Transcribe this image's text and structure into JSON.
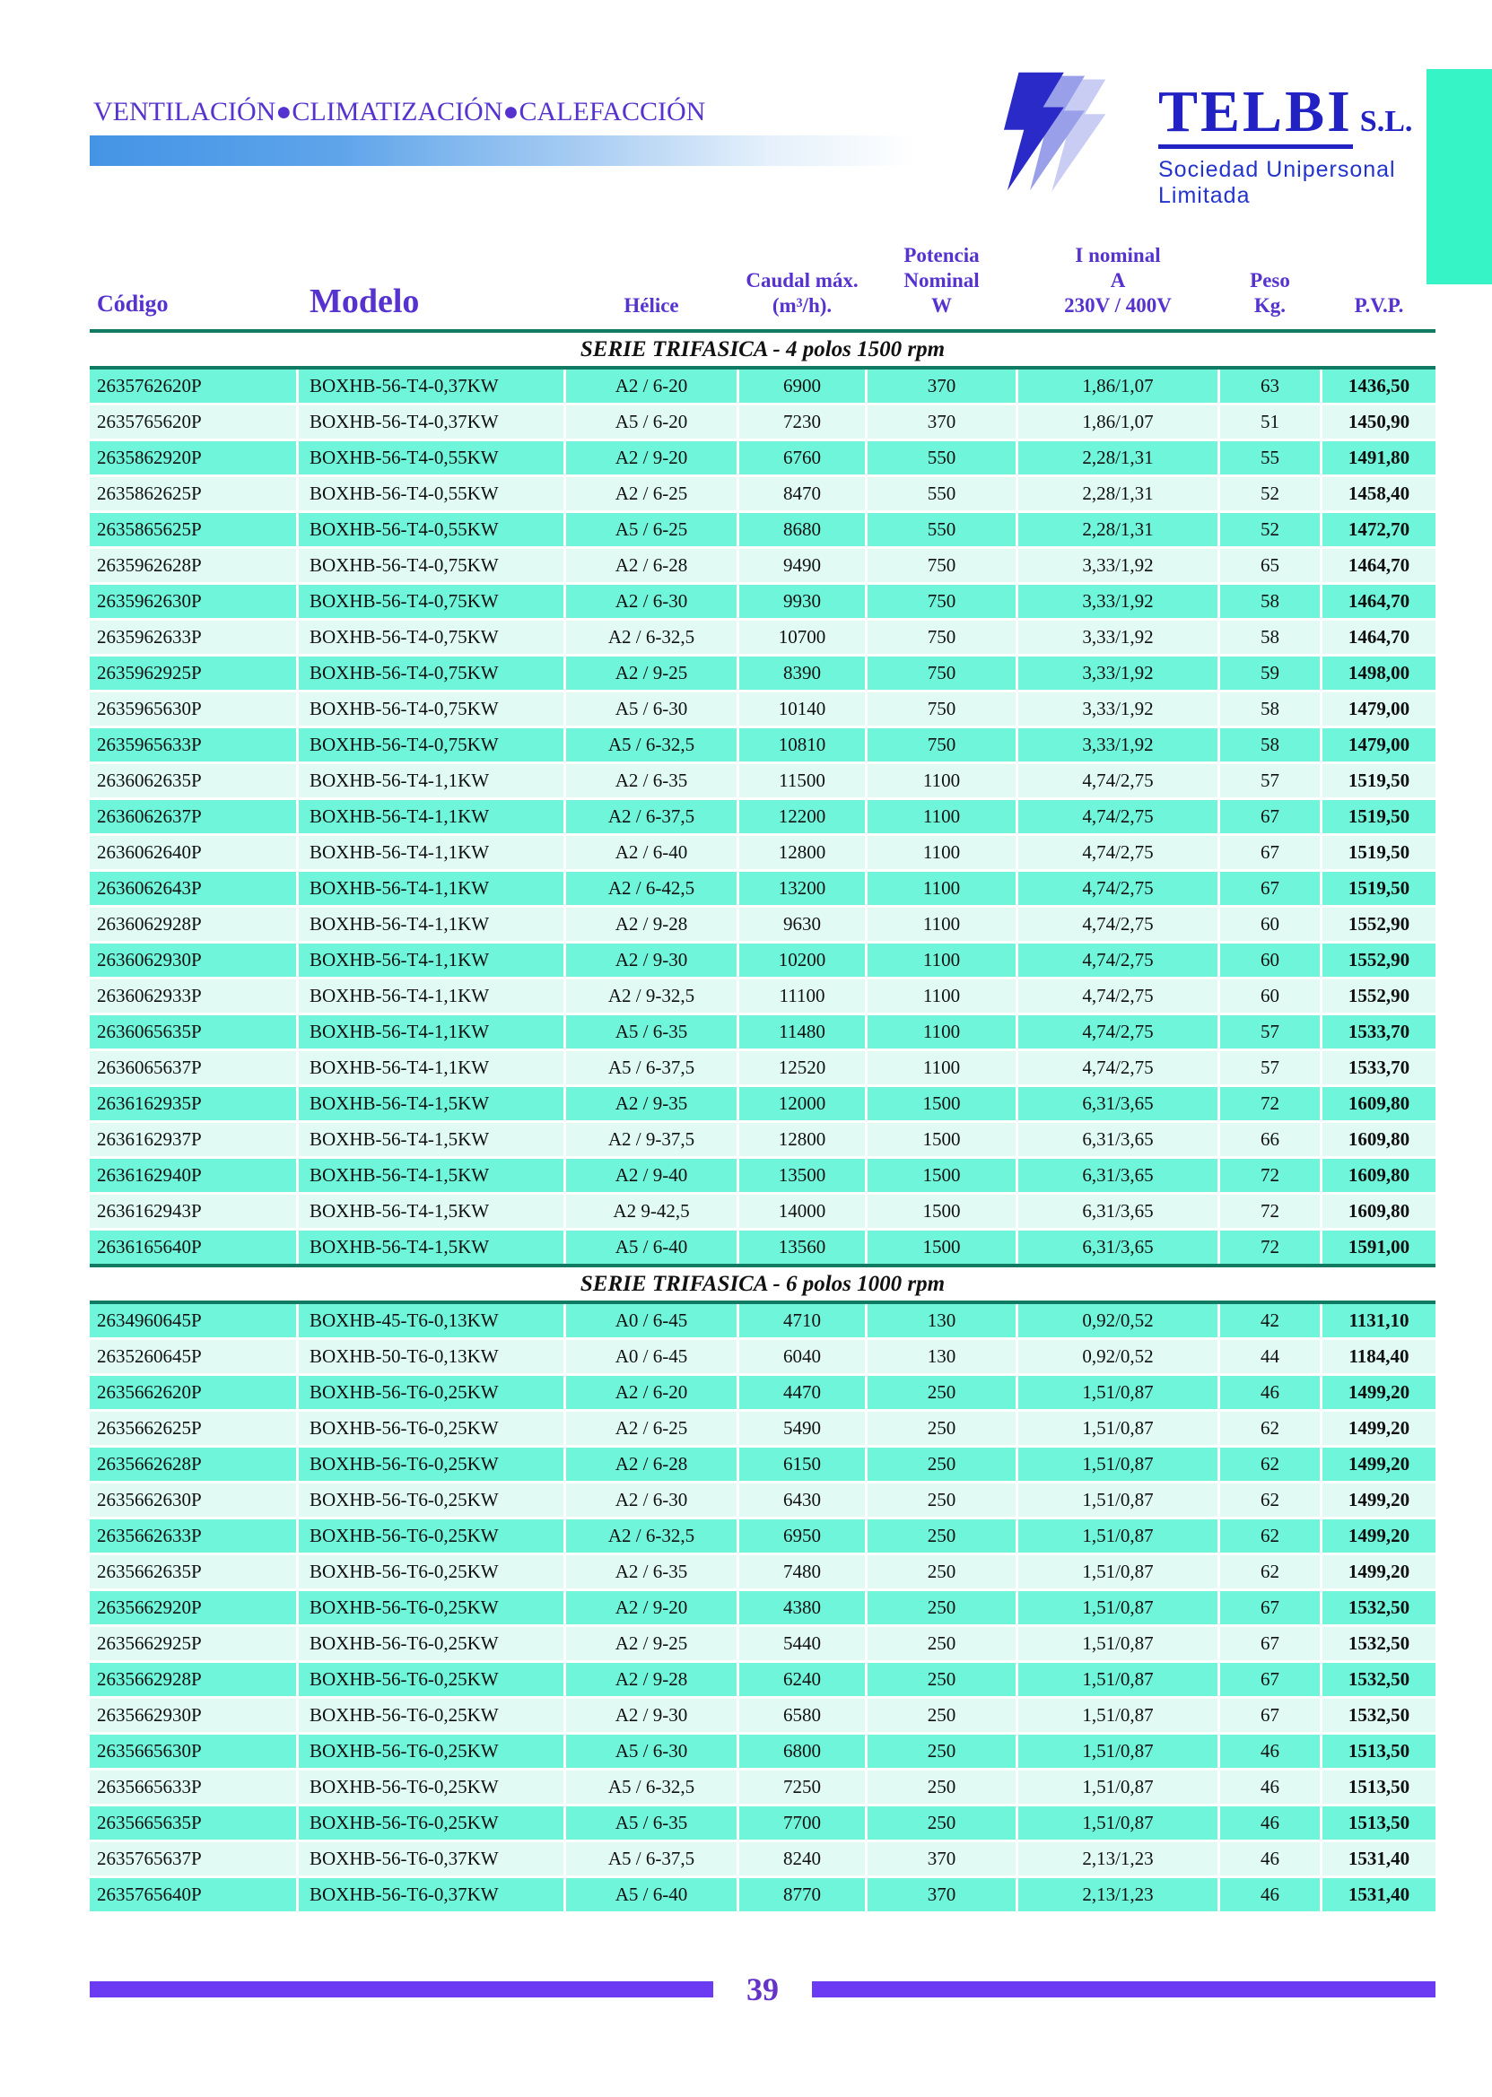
{
  "header": {
    "tagline": "VENTILACIÓN●CLIMATIZACIÓN●CALEFACCIÓN",
    "logo": {
      "name": "TELBI",
      "suffix": "S.L.",
      "subtitle": "Sociedad Unipersonal Limitada"
    }
  },
  "table": {
    "headers": [
      {
        "key": "codigo",
        "lines": [
          "Código"
        ]
      },
      {
        "key": "modelo",
        "lines": [
          "Modelo"
        ]
      },
      {
        "key": "helice",
        "lines": [
          "Hélice"
        ]
      },
      {
        "key": "caudal",
        "lines": [
          "Caudal máx.",
          "(m³/h)."
        ]
      },
      {
        "key": "potencia",
        "lines": [
          "Potencia",
          "Nominal",
          "W"
        ]
      },
      {
        "key": "inominal",
        "lines": [
          "I nominal",
          "A",
          "230V / 400V"
        ]
      },
      {
        "key": "peso",
        "lines": [
          "Peso",
          "Kg."
        ]
      },
      {
        "key": "pvp",
        "lines": [
          "P.V.P."
        ]
      }
    ],
    "sections": [
      {
        "title": "SERIE TRIFASICA - 4 polos 1500 rpm",
        "rows": [
          [
            "2635762620P",
            "BOXHB-56-T4-0,37KW",
            "A2 / 6-20",
            "6900",
            "370",
            "1,86/1,07",
            "63",
            "1436,50"
          ],
          [
            "2635765620P",
            "BOXHB-56-T4-0,37KW",
            "A5 / 6-20",
            "7230",
            "370",
            "1,86/1,07",
            "51",
            "1450,90"
          ],
          [
            "2635862920P",
            "BOXHB-56-T4-0,55KW",
            "A2 / 9-20",
            "6760",
            "550",
            "2,28/1,31",
            "55",
            "1491,80"
          ],
          [
            "2635862625P",
            "BOXHB-56-T4-0,55KW",
            "A2 / 6-25",
            "8470",
            "550",
            "2,28/1,31",
            "52",
            "1458,40"
          ],
          [
            "2635865625P",
            "BOXHB-56-T4-0,55KW",
            "A5 / 6-25",
            "8680",
            "550",
            "2,28/1,31",
            "52",
            "1472,70"
          ],
          [
            "2635962628P",
            "BOXHB-56-T4-0,75KW",
            "A2 / 6-28",
            "9490",
            "750",
            "3,33/1,92",
            "65",
            "1464,70"
          ],
          [
            "2635962630P",
            "BOXHB-56-T4-0,75KW",
            "A2 / 6-30",
            "9930",
            "750",
            "3,33/1,92",
            "58",
            "1464,70"
          ],
          [
            "2635962633P",
            "BOXHB-56-T4-0,75KW",
            "A2 / 6-32,5",
            "10700",
            "750",
            "3,33/1,92",
            "58",
            "1464,70"
          ],
          [
            "2635962925P",
            "BOXHB-56-T4-0,75KW",
            "A2 / 9-25",
            "8390",
            "750",
            "3,33/1,92",
            "59",
            "1498,00"
          ],
          [
            "2635965630P",
            "BOXHB-56-T4-0,75KW",
            "A5 / 6-30",
            "10140",
            "750",
            "3,33/1,92",
            "58",
            "1479,00"
          ],
          [
            "2635965633P",
            "BOXHB-56-T4-0,75KW",
            "A5 / 6-32,5",
            "10810",
            "750",
            "3,33/1,92",
            "58",
            "1479,00"
          ],
          [
            "2636062635P",
            "BOXHB-56-T4-1,1KW",
            "A2 / 6-35",
            "11500",
            "1100",
            "4,74/2,75",
            "57",
            "1519,50"
          ],
          [
            "2636062637P",
            "BOXHB-56-T4-1,1KW",
            "A2 / 6-37,5",
            "12200",
            "1100",
            "4,74/2,75",
            "67",
            "1519,50"
          ],
          [
            "2636062640P",
            "BOXHB-56-T4-1,1KW",
            "A2 / 6-40",
            "12800",
            "1100",
            "4,74/2,75",
            "67",
            "1519,50"
          ],
          [
            "2636062643P",
            "BOXHB-56-T4-1,1KW",
            "A2 / 6-42,5",
            "13200",
            "1100",
            "4,74/2,75",
            "67",
            "1519,50"
          ],
          [
            "2636062928P",
            "BOXHB-56-T4-1,1KW",
            "A2 / 9-28",
            "9630",
            "1100",
            "4,74/2,75",
            "60",
            "1552,90"
          ],
          [
            "2636062930P",
            "BOXHB-56-T4-1,1KW",
            "A2 / 9-30",
            "10200",
            "1100",
            "4,74/2,75",
            "60",
            "1552,90"
          ],
          [
            "2636062933P",
            "BOXHB-56-T4-1,1KW",
            "A2 / 9-32,5",
            "11100",
            "1100",
            "4,74/2,75",
            "60",
            "1552,90"
          ],
          [
            "2636065635P",
            "BOXHB-56-T4-1,1KW",
            "A5 / 6-35",
            "11480",
            "1100",
            "4,74/2,75",
            "57",
            "1533,70"
          ],
          [
            "2636065637P",
            "BOXHB-56-T4-1,1KW",
            "A5 / 6-37,5",
            "12520",
            "1100",
            "4,74/2,75",
            "57",
            "1533,70"
          ],
          [
            "2636162935P",
            "BOXHB-56-T4-1,5KW",
            "A2 / 9-35",
            "12000",
            "1500",
            "6,31/3,65",
            "72",
            "1609,80"
          ],
          [
            "2636162937P",
            "BOXHB-56-T4-1,5KW",
            "A2 / 9-37,5",
            "12800",
            "1500",
            "6,31/3,65",
            "66",
            "1609,80"
          ],
          [
            "2636162940P",
            "BOXHB-56-T4-1,5KW",
            "A2 / 9-40",
            "13500",
            "1500",
            "6,31/3,65",
            "72",
            "1609,80"
          ],
          [
            "2636162943P",
            "BOXHB-56-T4-1,5KW",
            "A2 9-42,5",
            "14000",
            "1500",
            "6,31/3,65",
            "72",
            "1609,80"
          ],
          [
            "2636165640P",
            "BOXHB-56-T4-1,5KW",
            "A5 / 6-40",
            "13560",
            "1500",
            "6,31/3,65",
            "72",
            "1591,00"
          ]
        ]
      },
      {
        "title": "SERIE TRIFASICA - 6 polos 1000 rpm",
        "rows": [
          [
            "2634960645P",
            "BOXHB-45-T6-0,13KW",
            "A0 / 6-45",
            "4710",
            "130",
            "0,92/0,52",
            "42",
            "1131,10"
          ],
          [
            "2635260645P",
            "BOXHB-50-T6-0,13KW",
            "A0 / 6-45",
            "6040",
            "130",
            "0,92/0,52",
            "44",
            "1184,40"
          ],
          [
            "2635662620P",
            "BOXHB-56-T6-0,25KW",
            "A2 / 6-20",
            "4470",
            "250",
            "1,51/0,87",
            "46",
            "1499,20"
          ],
          [
            "2635662625P",
            "BOXHB-56-T6-0,25KW",
            "A2 / 6-25",
            "5490",
            "250",
            "1,51/0,87",
            "62",
            "1499,20"
          ],
          [
            "2635662628P",
            "BOXHB-56-T6-0,25KW",
            "A2 / 6-28",
            "6150",
            "250",
            "1,51/0,87",
            "62",
            "1499,20"
          ],
          [
            "2635662630P",
            "BOXHB-56-T6-0,25KW",
            "A2 / 6-30",
            "6430",
            "250",
            "1,51/0,87",
            "62",
            "1499,20"
          ],
          [
            "2635662633P",
            "BOXHB-56-T6-0,25KW",
            "A2 / 6-32,5",
            "6950",
            "250",
            "1,51/0,87",
            "62",
            "1499,20"
          ],
          [
            "2635662635P",
            "BOXHB-56-T6-0,25KW",
            "A2 / 6-35",
            "7480",
            "250",
            "1,51/0,87",
            "62",
            "1499,20"
          ],
          [
            "2635662920P",
            "BOXHB-56-T6-0,25KW",
            "A2 / 9-20",
            "4380",
            "250",
            "1,51/0,87",
            "67",
            "1532,50"
          ],
          [
            "2635662925P",
            "BOXHB-56-T6-0,25KW",
            "A2 / 9-25",
            "5440",
            "250",
            "1,51/0,87",
            "67",
            "1532,50"
          ],
          [
            "2635662928P",
            "BOXHB-56-T6-0,25KW",
            "A2 / 9-28",
            "6240",
            "250",
            "1,51/0,87",
            "67",
            "1532,50"
          ],
          [
            "2635662930P",
            "BOXHB-56-T6-0,25KW",
            "A2 / 9-30",
            "6580",
            "250",
            "1,51/0,87",
            "67",
            "1532,50"
          ],
          [
            "2635665630P",
            "BOXHB-56-T6-0,25KW",
            "A5 / 6-30",
            "6800",
            "250",
            "1,51/0,87",
            "46",
            "1513,50"
          ],
          [
            "2635665633P",
            "BOXHB-56-T6-0,25KW",
            "A5 / 6-32,5",
            "7250",
            "250",
            "1,51/0,87",
            "46",
            "1513,50"
          ],
          [
            "2635665635P",
            "BOXHB-56-T6-0,25KW",
            "A5 / 6-35",
            "7700",
            "250",
            "1,51/0,87",
            "46",
            "1513,50"
          ],
          [
            "2635765637P",
            "BOXHB-56-T6-0,37KW",
            "A5 / 6-37,5",
            "8240",
            "370",
            "2,13/1,23",
            "46",
            "1531,40"
          ],
          [
            "2635765640P",
            "BOXHB-56-T6-0,37KW",
            "A5 / 6-40",
            "8770",
            "370",
            "2,13/1,23",
            "46",
            "1531,40"
          ]
        ]
      }
    ]
  },
  "footer": {
    "page_number": "39"
  },
  "colors": {
    "row_teal": "#6ff5da",
    "row_pale": "#e1fbf4",
    "divider_green": "#117a62",
    "header_purple": "#5633cf",
    "footer_bar_purple": "#6a3bf2",
    "logo_blue": "#2121c4",
    "corner_teal": "#36f4c6",
    "gradient_blue": "#4494e6"
  }
}
